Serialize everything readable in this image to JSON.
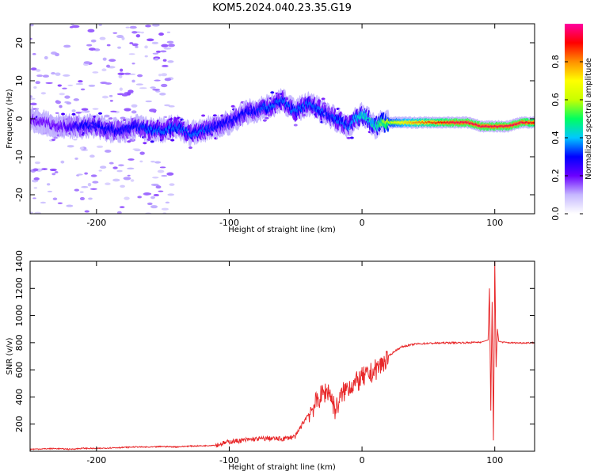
{
  "title": "KOM5.2024.040.23.35.G19",
  "chart_data": [
    {
      "type": "heatmap",
      "xlabel": "Height of straight line (km)",
      "ylabel": "Frequency (Hz)",
      "xlim": [
        -250,
        130
      ],
      "ylim": [
        -25,
        25
      ],
      "x_ticks": [
        "-200",
        "-100",
        "0",
        "100"
      ],
      "y_ticks": [
        "-20",
        "-10",
        "0",
        "10",
        "20"
      ],
      "grid": false,
      "ridge": {
        "x": [
          -250,
          -240,
          -230,
          -220,
          -210,
          -200,
          -190,
          -180,
          -170,
          -160,
          -150,
          -140,
          -130,
          -120,
          -110,
          -100,
          -95,
          -90,
          -85,
          -80,
          -75,
          -70,
          -65,
          -60,
          -55,
          -50,
          -45,
          -40,
          -35,
          -30,
          -25,
          -20,
          -15,
          -10,
          -5,
          0,
          5,
          10,
          15,
          20,
          30,
          40,
          50,
          60,
          70,
          80,
          90,
          100,
          110,
          120,
          130
        ],
        "y": [
          0,
          -1,
          -2,
          -2,
          -2,
          -2,
          -3,
          -3,
          -2,
          -3,
          -3,
          -2,
          -4,
          -3,
          -2,
          -1,
          0,
          1,
          2,
          2,
          3,
          3,
          4,
          5,
          3,
          2,
          3,
          4,
          3,
          2,
          1,
          0,
          -1,
          -2,
          0,
          1,
          0,
          -2,
          -1,
          -1,
          -1,
          -1,
          -1,
          -1,
          -1,
          -1,
          -2,
          -2,
          -2,
          -1,
          -1
        ],
        "amplitude": [
          0.2,
          0.2,
          0.2,
          0.25,
          0.3,
          0.3,
          0.3,
          0.3,
          0.3,
          0.35,
          0.35,
          0.35,
          0.35,
          0.35,
          0.3,
          0.3,
          0.3,
          0.3,
          0.3,
          0.3,
          0.35,
          0.35,
          0.35,
          0.35,
          0.35,
          0.35,
          0.35,
          0.35,
          0.35,
          0.35,
          0.3,
          0.35,
          0.35,
          0.35,
          0.4,
          0.45,
          0.45,
          0.45,
          0.55,
          0.6,
          0.7,
          0.8,
          0.85,
          0.9,
          0.95,
          0.95,
          0.95,
          0.95,
          0.95,
          0.95,
          0.9
        ]
      },
      "colorbar": {
        "label": "Normalized spectral amplitude",
        "ticks": [
          "0.0",
          "0.2",
          "0.4",
          "0.6",
          "0.8"
        ],
        "range": [
          0,
          1
        ],
        "stops": [
          "#ffffff",
          "#c6b8ff",
          "#6a00ff",
          "#0000ff",
          "#00c8ff",
          "#00ff60",
          "#c8ff00",
          "#ffff00",
          "#ff9000",
          "#ff0000",
          "#ff00a0"
        ]
      }
    },
    {
      "type": "line",
      "xlabel": "Height of straight line (km)",
      "ylabel": "SNR (v/v)",
      "xlim": [
        -250,
        130
      ],
      "ylim": [
        0,
        1400
      ],
      "x_ticks": [
        "-200",
        "-100",
        "0",
        "100"
      ],
      "y_ticks": [
        "200",
        "400",
        "600",
        "800",
        "1000",
        "1200",
        "1400"
      ],
      "color": "#e8282a",
      "grid": false,
      "x": [
        -250,
        -240,
        -230,
        -220,
        -210,
        -200,
        -190,
        -180,
        -170,
        -160,
        -150,
        -140,
        -130,
        -120,
        -110,
        -100,
        -90,
        -80,
        -70,
        -60,
        -50,
        -45,
        -40,
        -35,
        -30,
        -25,
        -20,
        -15,
        -10,
        -5,
        0,
        5,
        10,
        15,
        20,
        25,
        30,
        40,
        50,
        60,
        70,
        80,
        90,
        95,
        96,
        97,
        98,
        99,
        100,
        101,
        102,
        103,
        105,
        110,
        120,
        130
      ],
      "y": [
        15,
        18,
        20,
        15,
        22,
        20,
        25,
        28,
        32,
        30,
        35,
        32,
        38,
        40,
        45,
        70,
        80,
        90,
        95,
        90,
        110,
        200,
        280,
        350,
        420,
        450,
        300,
        420,
        480,
        500,
        540,
        560,
        600,
        640,
        700,
        740,
        770,
        790,
        795,
        798,
        800,
        800,
        805,
        820,
        1200,
        300,
        1100,
        80,
        1400,
        620,
        900,
        810,
        805,
        800,
        798,
        800
      ]
    }
  ]
}
